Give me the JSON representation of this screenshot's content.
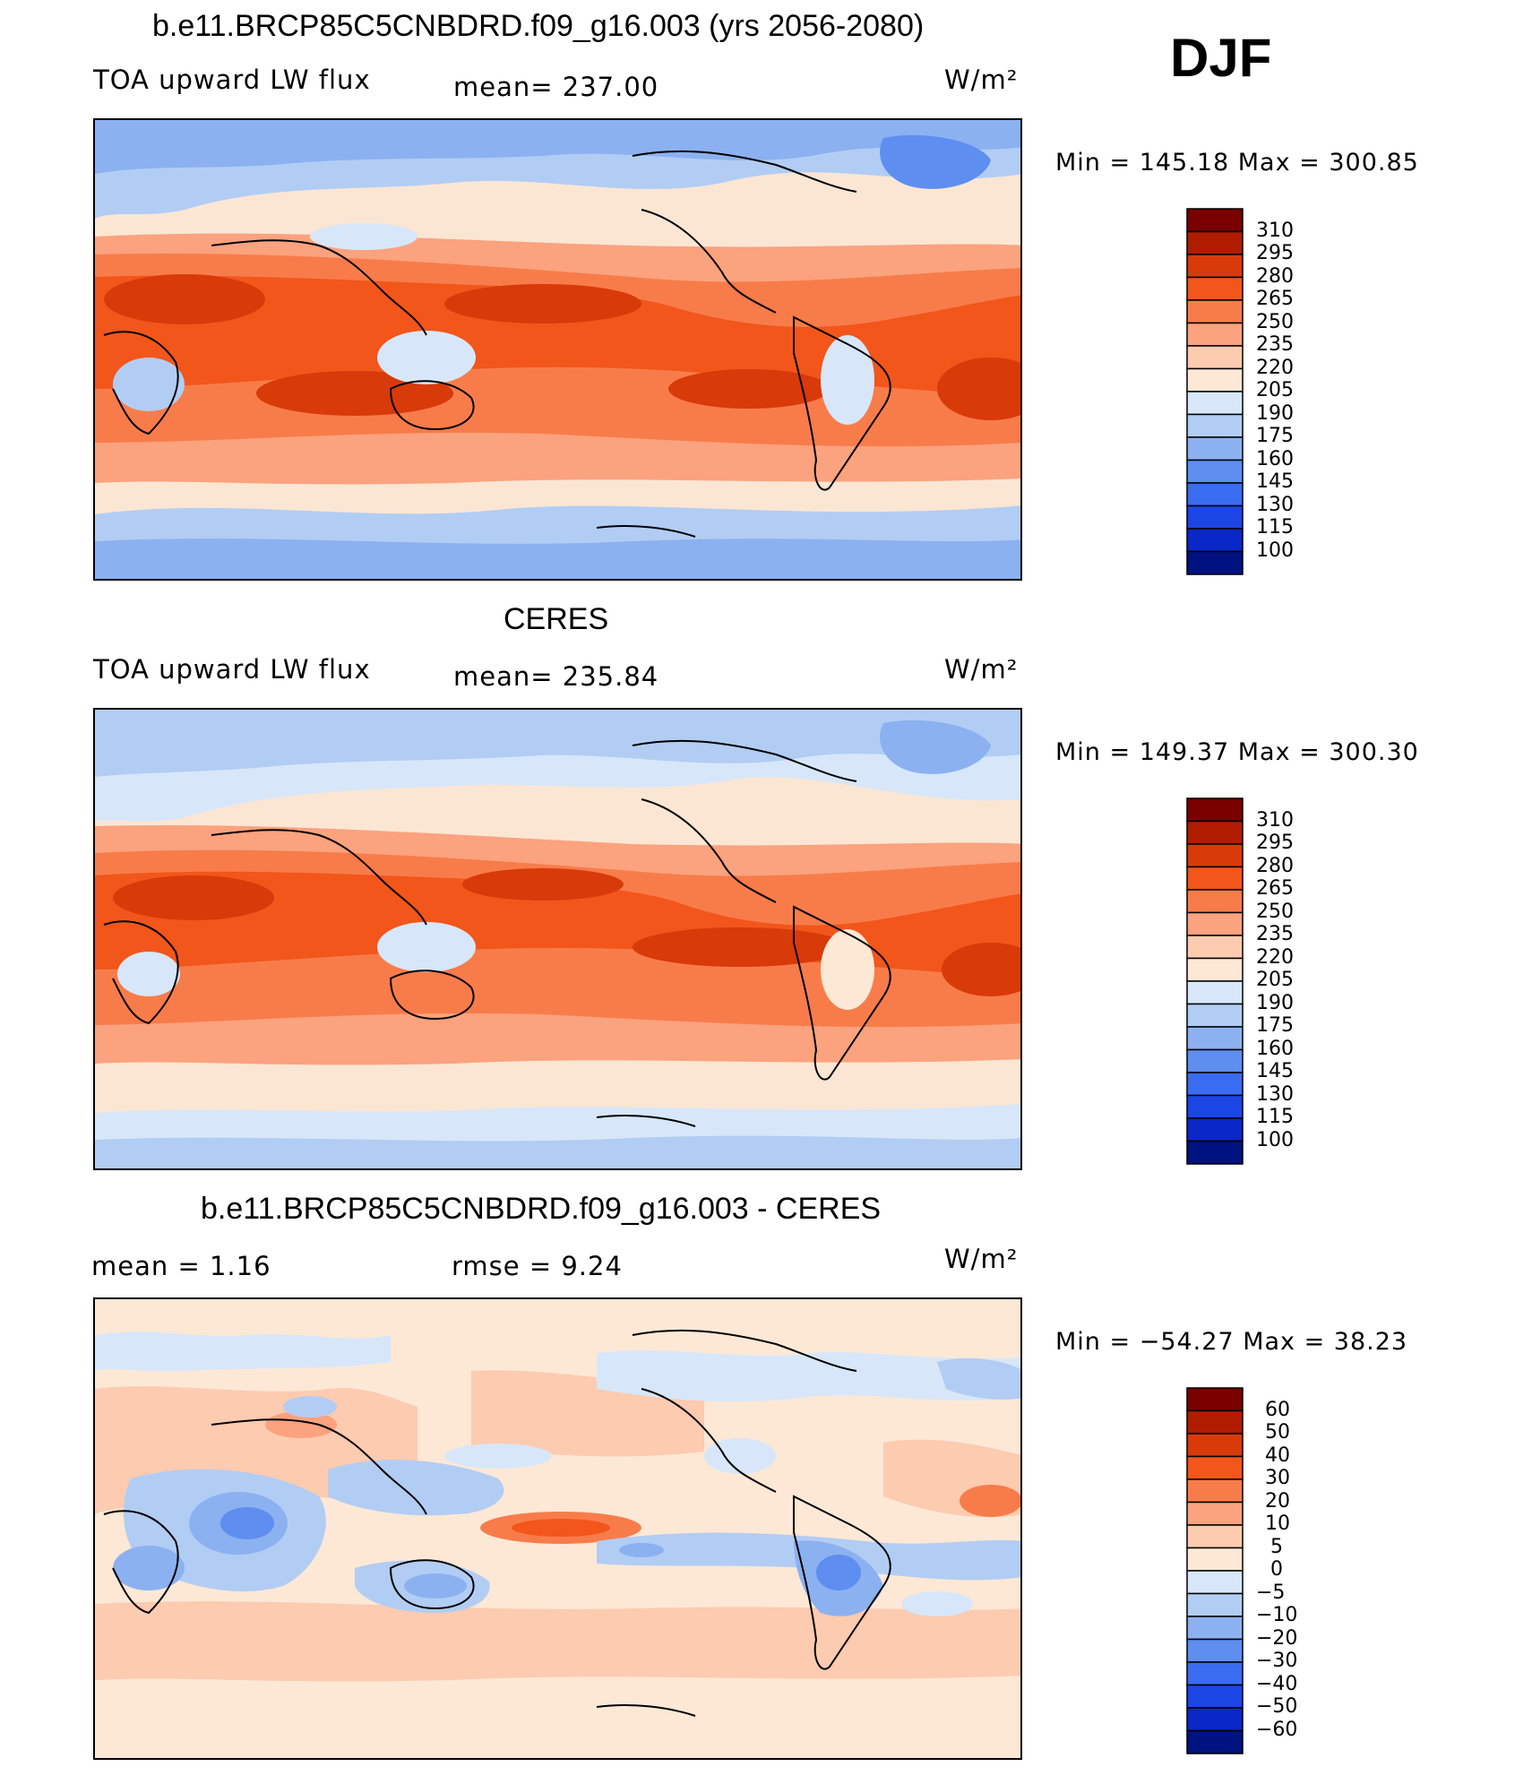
{
  "season": "DJF",
  "panels": [
    {
      "title": "b.e11.BRCP85C5CNBDRD.f09_g16.003 (yrs 2056-2080)",
      "left_text": "TOA upward LW flux",
      "center_text": "mean=  237.00",
      "units": "W/m²",
      "minmax": "Min  =  145.18  Max  =  300.85",
      "colorbar_labels": [
        "310",
        "295",
        "280",
        "265",
        "250",
        "235",
        "220",
        "205",
        "190",
        "175",
        "160",
        "145",
        "130",
        "115",
        "100"
      ]
    },
    {
      "title": "CERES",
      "left_text": "TOA upward LW flux",
      "center_text": "mean=  235.84",
      "units": "W/m²",
      "minmax": "Min  =  149.37  Max  =  300.30",
      "colorbar_labels": [
        "310",
        "295",
        "280",
        "265",
        "250",
        "235",
        "220",
        "205",
        "190",
        "175",
        "160",
        "145",
        "130",
        "115",
        "100"
      ]
    },
    {
      "title": "b.e11.BRCP85C5CNBDRD.f09_g16.003 - CERES",
      "left_text": "mean  =     1.16",
      "center_text": "rmse  =     9.24",
      "units": "W/m²",
      "minmax": "Min  =  −54.27  Max  =    38.23",
      "colorbar_labels": [
        "60",
        "50",
        "40",
        "30",
        "20",
        "10",
        "5",
        "0",
        "−5",
        "−10",
        "−20",
        "−30",
        "−40",
        "−50",
        "−60"
      ]
    }
  ],
  "colors": {
    "scale": [
      "#7a0000",
      "#b01c00",
      "#d83a0a",
      "#f2561a",
      "#f87c4a",
      "#fba27e",
      "#fdcbb0",
      "#fde8d6",
      "#d7e7f9",
      "#b2cdf4",
      "#8cb1f0",
      "#5d8ef0",
      "#3a6cf2",
      "#1c45e6",
      "#0a28c8",
      "#00127f"
    ]
  }
}
